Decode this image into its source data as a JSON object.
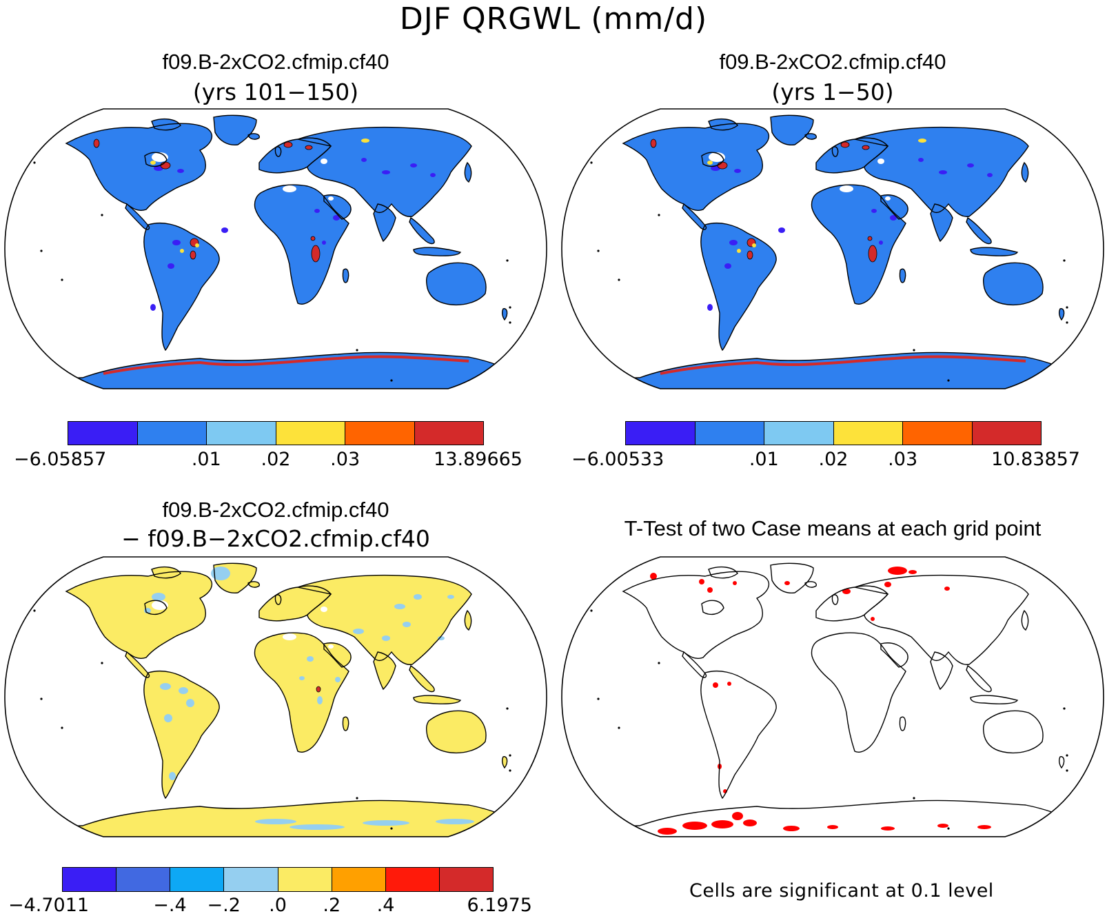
{
  "figure_title": "DJF QRGWL (mm/d)",
  "panels": [
    {
      "id": "case1",
      "title": "f09.B-2xCO2.cfmip.cf40",
      "subtitle": "(yrs 101−150)",
      "land_color": "#2f80ef",
      "colorbar": {
        "colors": [
          "#3a1ef5",
          "#2f80ef",
          "#7ec9f2",
          "#fde23a",
          "#ff6400",
          "#d42a2a"
        ],
        "labels": [
          "−6.05857",
          ".01",
          ".02",
          ".03",
          "13.89665"
        ]
      }
    },
    {
      "id": "case2",
      "title": "f09.B-2xCO2.cfmip.cf40",
      "subtitle": "(yrs 1−50)",
      "land_color": "#2f80ef",
      "colorbar": {
        "colors": [
          "#3a1ef5",
          "#2f80ef",
          "#7ec9f2",
          "#fde23a",
          "#ff6400",
          "#d42a2a"
        ],
        "labels": [
          "−6.00533",
          ".01",
          ".02",
          ".03",
          "10.83857"
        ]
      }
    },
    {
      "id": "difference",
      "title": "f09.B-2xCO2.cfmip.cf40",
      "subtitle": "− f09.B−2xCO2.cfmip.cf40",
      "land_color": "#fbeb64",
      "colorbar": {
        "colors": [
          "#3a1ef5",
          "#4169e1",
          "#0ea8f5",
          "#95cff0",
          "#fbeb64",
          "#ffa000",
          "#ff1a0a",
          "#d42a2a"
        ],
        "labels": [
          "−4.7011",
          "−.4",
          "−.2",
          ".0",
          ".2",
          ".4",
          "6.1975"
        ]
      }
    },
    {
      "id": "ttest",
      "title": "T-Test of two Case means at each grid point",
      "land_color": "#ffffff",
      "signif_color": "#ff0000",
      "footnote": "Cells are significant at 0.1 level"
    }
  ]
}
